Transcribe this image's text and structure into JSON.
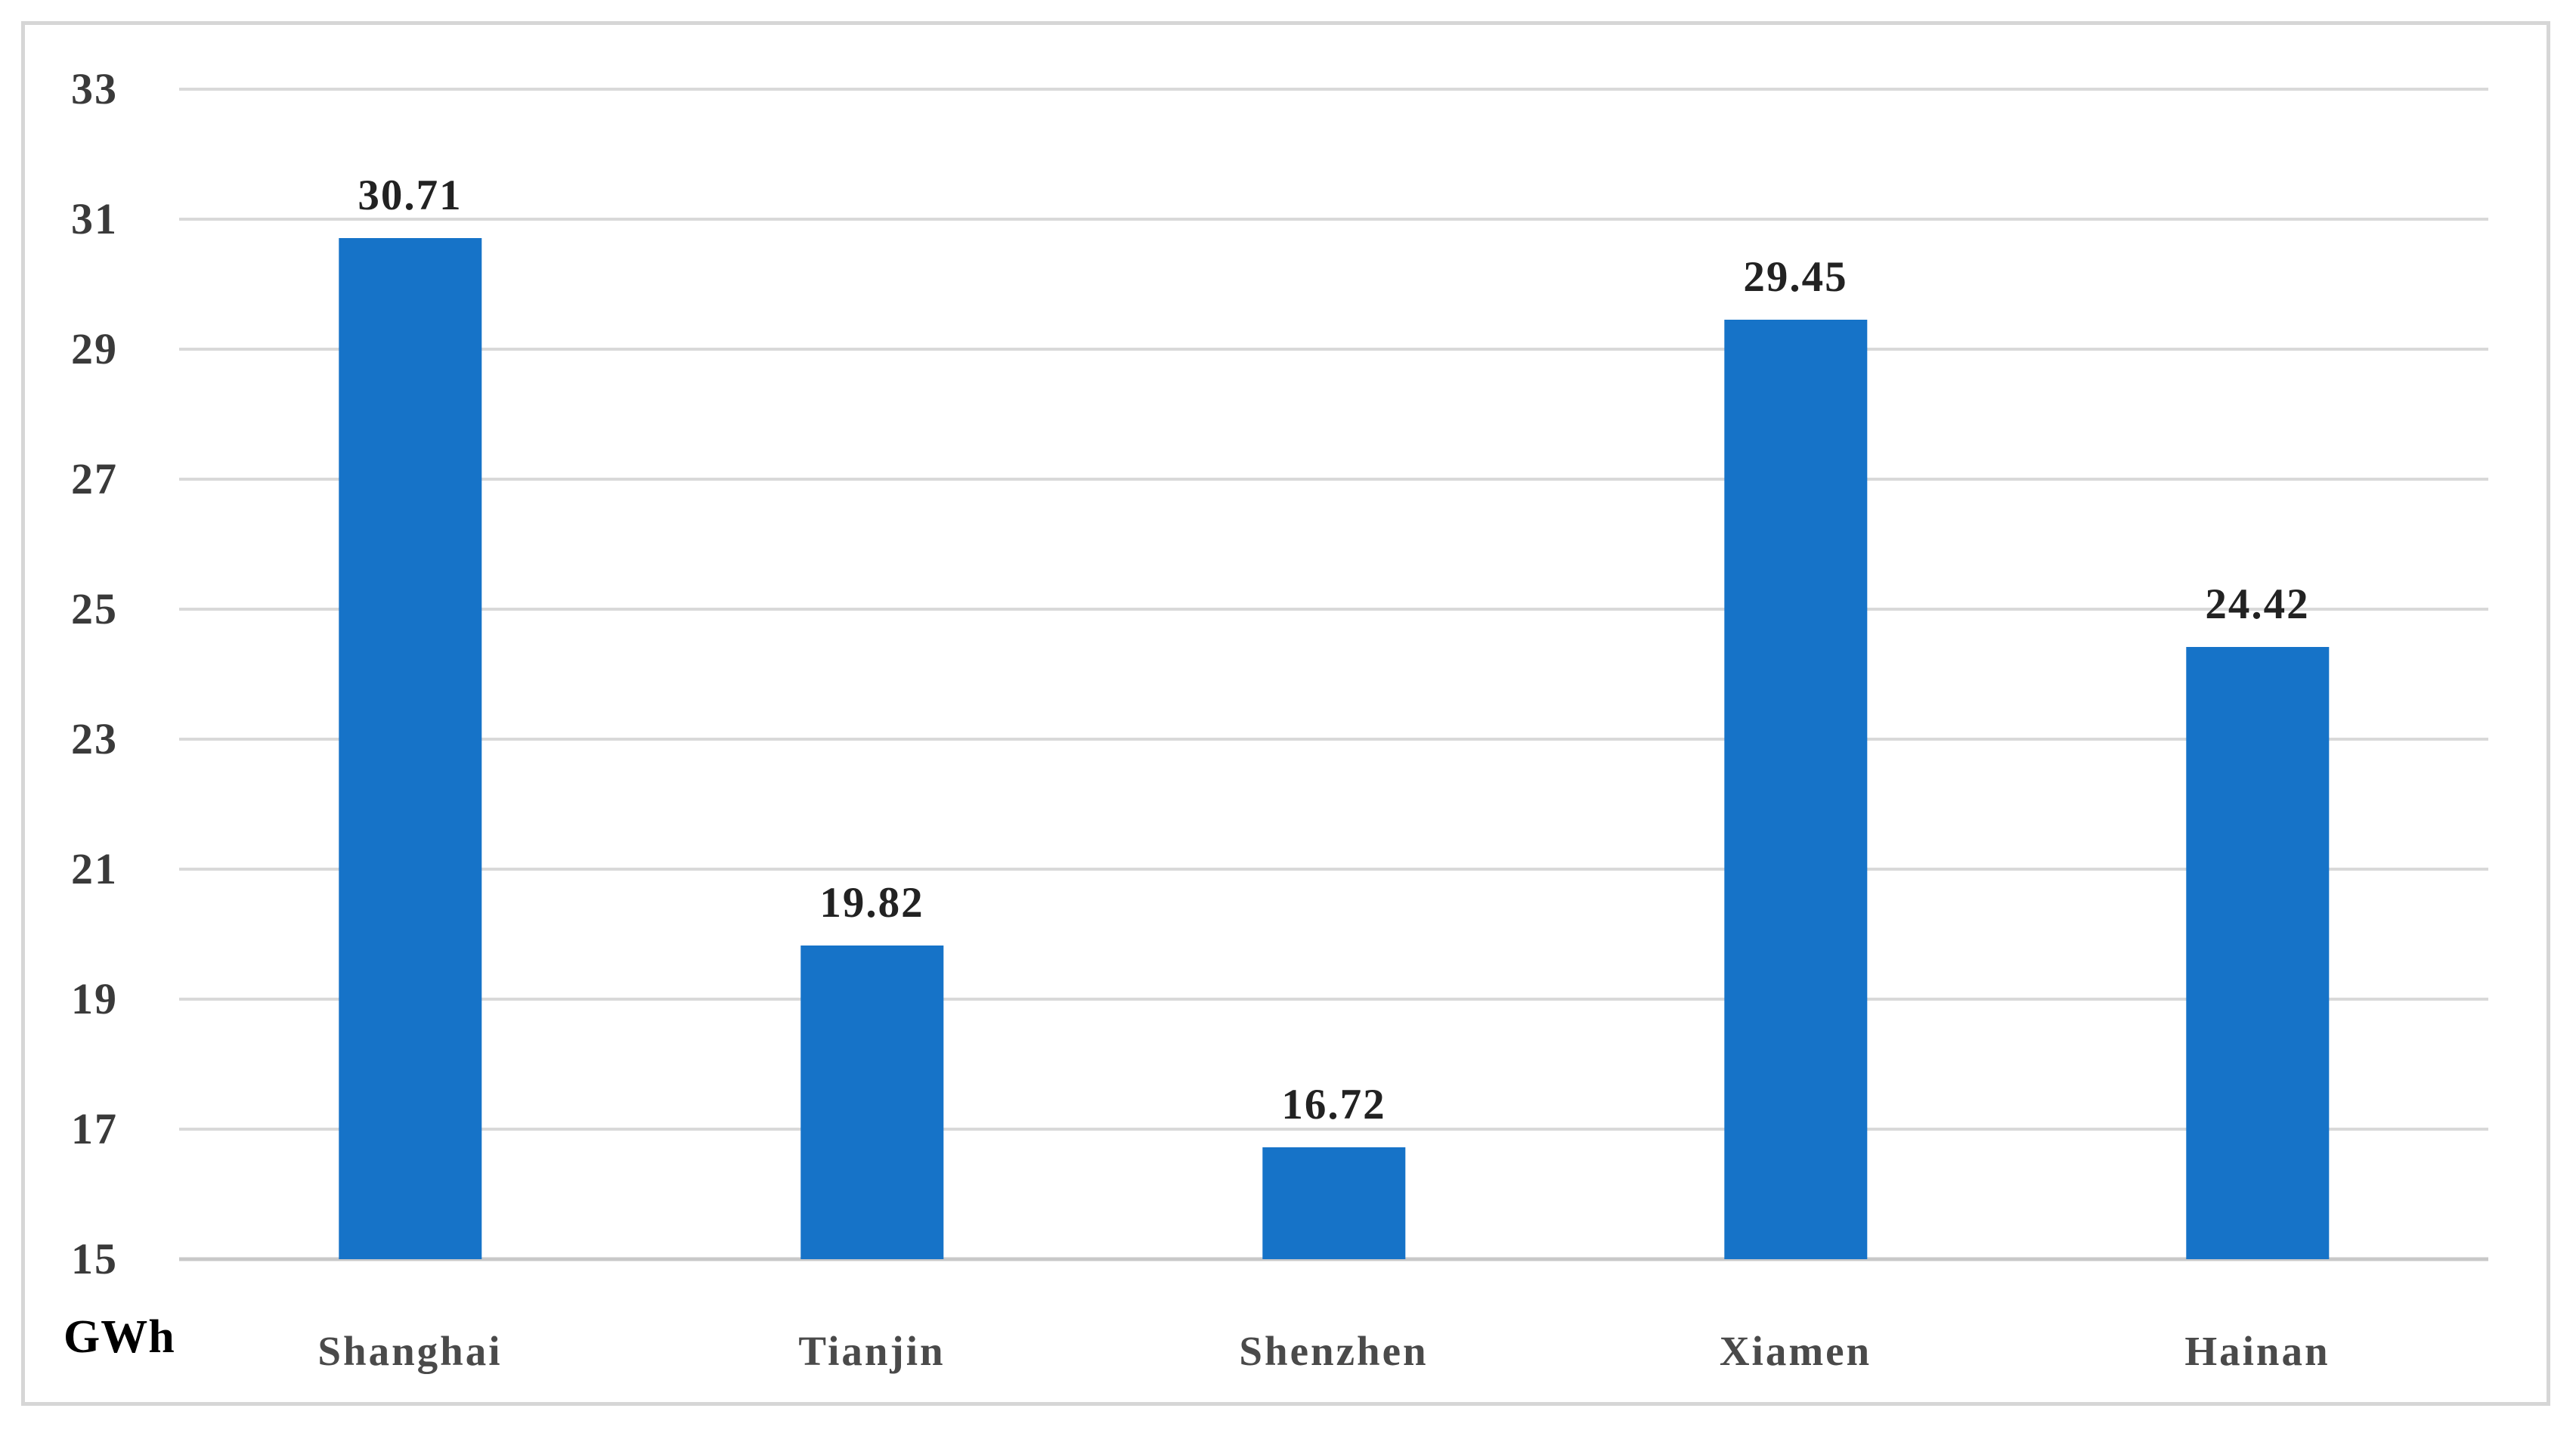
{
  "chart_data": {
    "type": "bar",
    "categories": [
      "Shanghai",
      "Tianjin",
      "Shenzhen",
      "Xiamen",
      "Hainan"
    ],
    "values": [
      30.71,
      19.82,
      16.72,
      29.45,
      24.42
    ],
    "value_labels": [
      "30.71",
      "19.82",
      "16.72",
      "29.45",
      "24.42"
    ],
    "title": "",
    "xlabel": "",
    "ylabel": "GWh",
    "ylim": [
      15,
      33
    ],
    "yticks": [
      33,
      31,
      29,
      27,
      25,
      23,
      21,
      19,
      17,
      15
    ],
    "grid": "horizontal",
    "legend": "none",
    "bar_color": "#1673c8"
  },
  "unit_label": "GWh",
  "colors": {
    "bar": "#1673c8",
    "gridline": "#d9d9d9",
    "baseline": "#c8c8c8",
    "frame_border": "#d6d6d6",
    "tick_text": "#3a3a3a",
    "category_text": "#4a4a4a",
    "value_text": "#222222",
    "background": "#ffffff"
  }
}
